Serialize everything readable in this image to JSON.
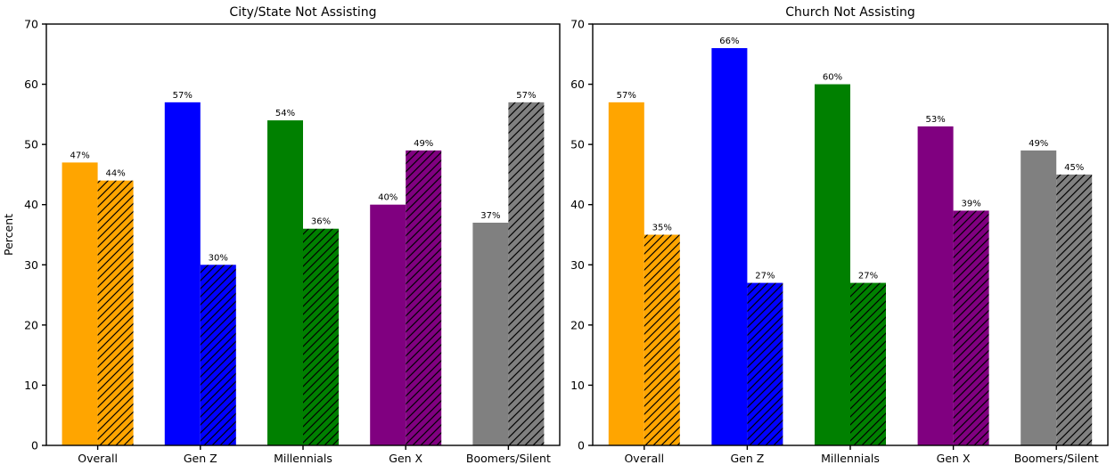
{
  "figure": {
    "background": "#ffffff",
    "axis_color": "#000000",
    "hatch_color": "#000000"
  },
  "chart_data": [
    {
      "type": "bar",
      "title": "City/State Not Assisting",
      "xlabel": "",
      "ylabel": "Percent",
      "ylim": [
        0,
        70
      ],
      "yticks": [
        0,
        10,
        20,
        30,
        40,
        50,
        60,
        70
      ],
      "grid": false,
      "legend": "none",
      "categories": [
        "Overall",
        "Gen Z",
        "Millennials",
        "Gen X",
        "Boomers/Silent"
      ],
      "bar_colors": [
        "#FFA500",
        "#0000FF",
        "#008000",
        "#800080",
        "#808080"
      ],
      "series": [
        {
          "name": "solid",
          "style": "solid",
          "values": [
            47,
            57,
            54,
            40,
            37
          ]
        },
        {
          "name": "hatched",
          "style": "hatched",
          "values": [
            44,
            30,
            36,
            49,
            57
          ]
        }
      ],
      "value_suffix": "%",
      "value_labels": {
        "solid": [
          "47%",
          "57%",
          "54%",
          "40%",
          "37%"
        ],
        "hatched": [
          "44%",
          "30%",
          "36%",
          "49%",
          "57%"
        ]
      }
    },
    {
      "type": "bar",
      "title": "Church Not Assisting",
      "xlabel": "",
      "ylabel": "",
      "ylim": [
        0,
        70
      ],
      "yticks": [
        0,
        10,
        20,
        30,
        40,
        50,
        60,
        70
      ],
      "grid": false,
      "legend": "none",
      "categories": [
        "Overall",
        "Gen Z",
        "Millennials",
        "Gen X",
        "Boomers/Silent"
      ],
      "bar_colors": [
        "#FFA500",
        "#0000FF",
        "#008000",
        "#800080",
        "#808080"
      ],
      "series": [
        {
          "name": "solid",
          "style": "solid",
          "values": [
            57,
            66,
            60,
            53,
            49
          ]
        },
        {
          "name": "hatched",
          "style": "hatched",
          "values": [
            35,
            27,
            27,
            39,
            45
          ]
        }
      ],
      "value_suffix": "%",
      "value_labels": {
        "solid": [
          "57%",
          "66%",
          "60%",
          "53%",
          "49%"
        ],
        "hatched": [
          "35%",
          "27%",
          "27%",
          "39%",
          "45%"
        ]
      }
    }
  ]
}
